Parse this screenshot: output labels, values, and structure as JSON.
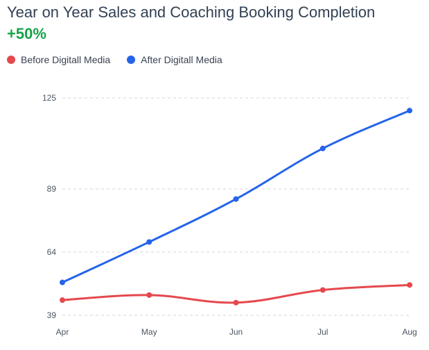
{
  "header": {
    "title": "Year on Year Sales and Coaching Booking Completion",
    "change": "+50%",
    "change_color": "#16a34a"
  },
  "legend": {
    "items": [
      {
        "label": "Before Digitall Media",
        "color": "#e5484d"
      },
      {
        "label": "After Digitall Media",
        "color": "#2563eb"
      }
    ]
  },
  "chart_data": {
    "type": "line",
    "categories": [
      "Apr",
      "May",
      "Jun",
      "Jul",
      "Aug"
    ],
    "y_ticks": [
      39,
      64,
      89,
      125
    ],
    "ylim": [
      39,
      125
    ],
    "grid": true,
    "legend_position": "top-left",
    "series": [
      {
        "name": "Before Digitall Media",
        "color": "#e5484d",
        "values": [
          45,
          47,
          44,
          49,
          51
        ]
      },
      {
        "name": "After Digitall Media",
        "color": "#2563eb",
        "values": [
          52,
          68,
          85,
          105,
          120
        ]
      }
    ]
  }
}
